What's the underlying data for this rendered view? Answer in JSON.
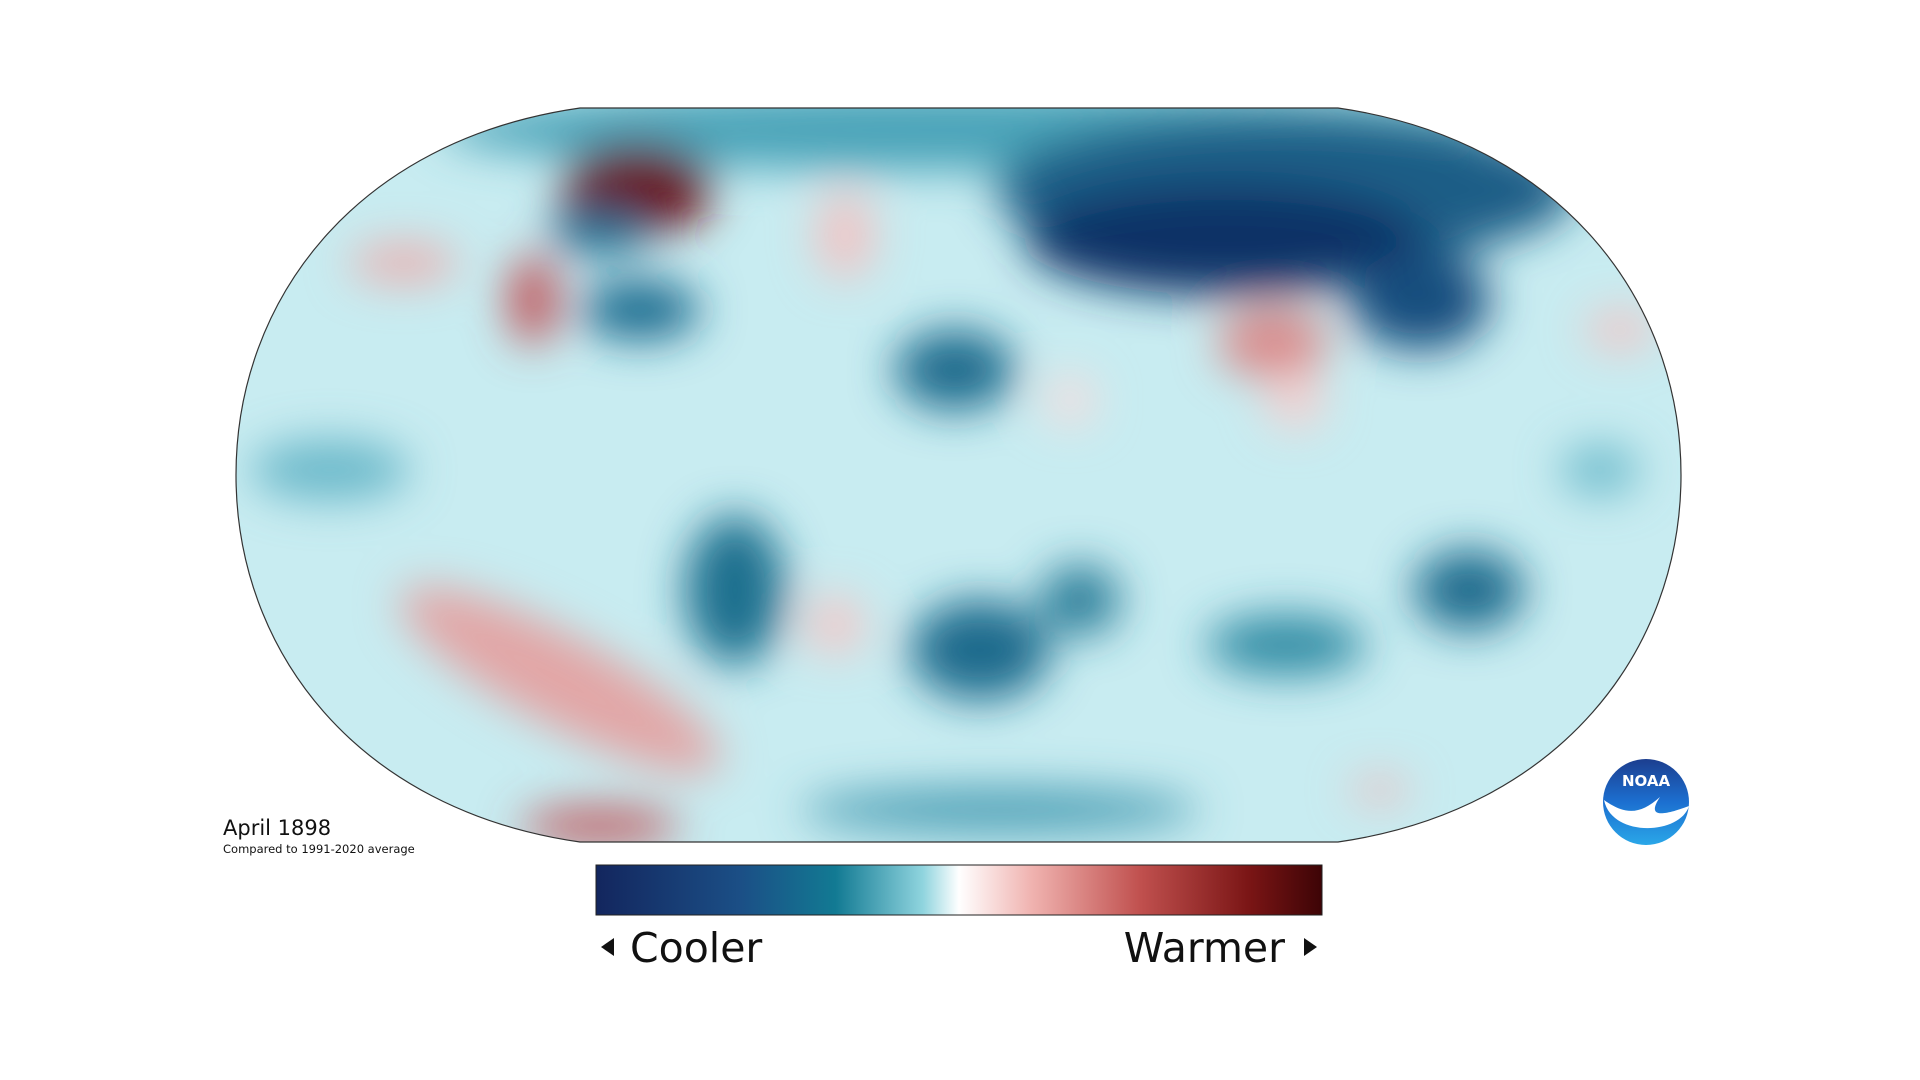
{
  "title": "April 1898",
  "subtitle": "Compared to 1991-2020 average",
  "legend": {
    "low_label": "Cooler",
    "high_label": "Warmer"
  },
  "logo": {
    "text": "NOAA"
  }
}
